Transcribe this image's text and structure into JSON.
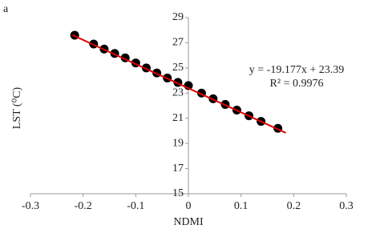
{
  "chart_data": {
    "type": "scatter",
    "panel_label": "a",
    "x_label": "NDMI",
    "y_label": "LST (⁰C)",
    "xlim": [
      -0.3,
      0.3
    ],
    "xticks": [
      -0.3,
      -0.2,
      -0.1,
      0,
      0.1,
      0.2,
      0.3
    ],
    "ylim": [
      15,
      29
    ],
    "yticks": [
      15,
      17,
      19,
      21,
      23,
      25,
      27,
      29
    ],
    "series": [
      {
        "kind": "points",
        "color": "#000000",
        "x": [
          -0.216,
          -0.18,
          -0.16,
          -0.14,
          -0.12,
          -0.1,
          -0.08,
          -0.06,
          -0.04,
          -0.02,
          0.0,
          0.025,
          0.047,
          0.07,
          0.092,
          0.115,
          0.138,
          0.17
        ],
        "values": [
          27.6,
          26.9,
          26.5,
          26.15,
          25.8,
          25.4,
          25.0,
          24.6,
          24.2,
          23.85,
          23.6,
          23.0,
          22.55,
          22.1,
          21.65,
          21.2,
          20.75,
          20.2
        ]
      },
      {
        "kind": "trendline",
        "color": "#e00000",
        "x": [
          -0.22,
          0.185
        ],
        "values": [
          27.61,
          19.84
        ]
      }
    ],
    "annotations": [
      "y = -19.177x + 23.39",
      "R² = 0.9976"
    ]
  }
}
